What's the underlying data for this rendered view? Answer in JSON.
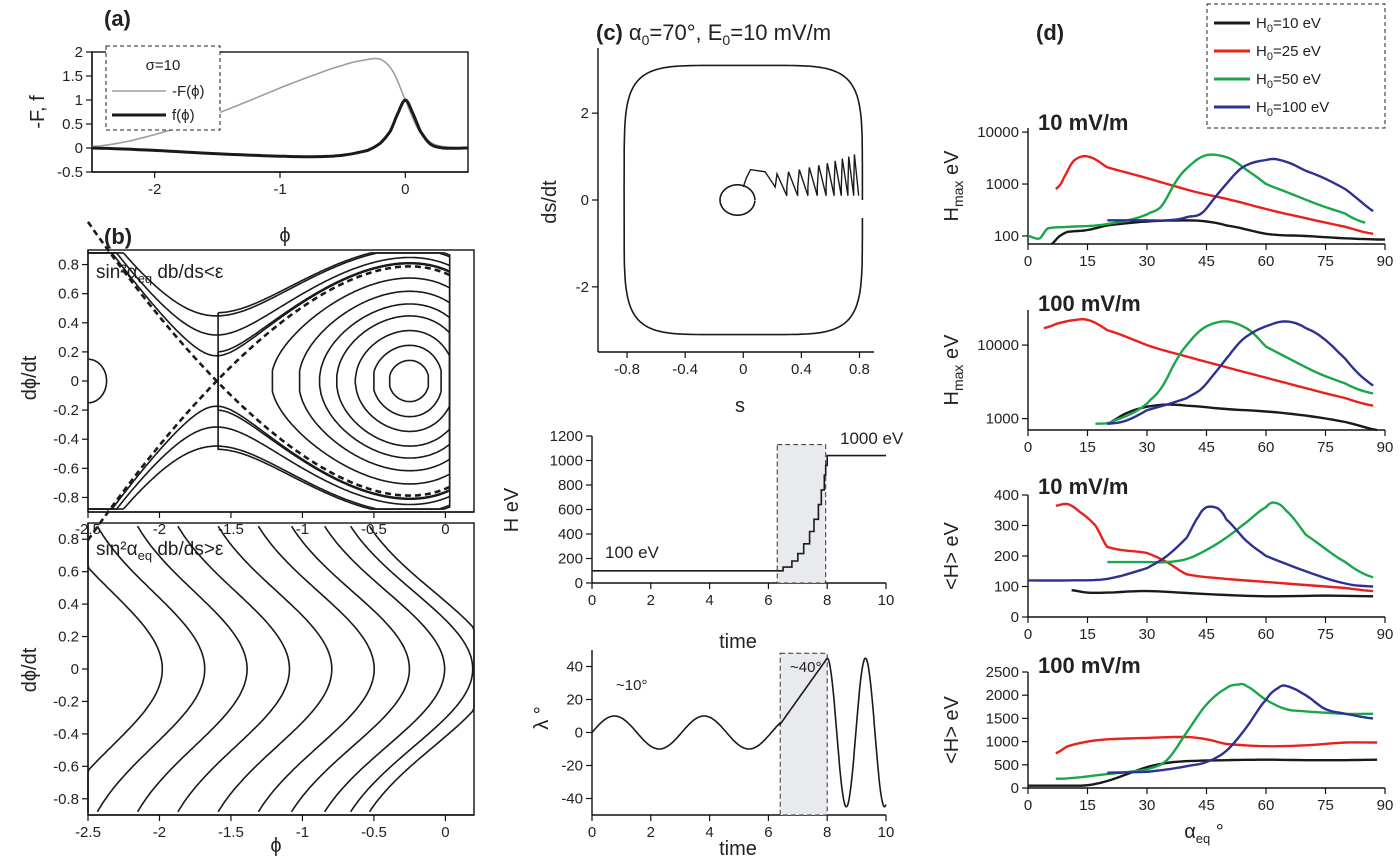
{
  "panels": {
    "a": {
      "label": "(a)",
      "ylabel": "-F, f",
      "xlabel": "ϕ",
      "legend_title": "σ=10",
      "legend": [
        "-F(ϕ)",
        "f(ϕ)"
      ]
    },
    "b": {
      "label": "(b)",
      "ylabel": "dϕ/dt",
      "xlabel": "ϕ",
      "top_text": "sin²α",
      "top_sub": "eq",
      "top_rest": " db/ds<ε",
      "bot_text": "sin²α",
      "bot_sub": "eq",
      "bot_rest": " db/ds>ε"
    },
    "c": {
      "label": "(c)",
      "title_a": "α",
      "title_sub0": "0",
      "title_mid": "=70°, E",
      "title_sub1": "0",
      "title_end": "=10 mV/m",
      "ylabel": "ds/dt",
      "xlabel": "s",
      "H_ylabel": "H eV",
      "H_xlabel": "time",
      "H_start": "100 eV",
      "H_end": "1000 eV",
      "L_ylabel": "λ °",
      "L_xlabel": "time",
      "L_ann1": "~10°",
      "L_ann2": "~40°"
    },
    "d": {
      "label": "(d)",
      "ylabel_hmax": "H",
      "ylabel_hmax_sub": "max",
      "ylabel_hmax_end": " eV",
      "ylabel_hmean": "<H> eV",
      "xlabel": "α",
      "xlabel_sub": "eq",
      "xlabel_end": " °",
      "sub1": "10 mV/m",
      "sub2": "100 mV/m",
      "sub3": "10 mV/m",
      "sub4": "100 mV/m",
      "legend": [
        {
          "pre": "H",
          "sub": "0",
          "post": "=10 eV"
        },
        {
          "pre": "H",
          "sub": "0",
          "post": "=25 eV"
        },
        {
          "pre": "H",
          "sub": "0",
          "post": "=50 eV"
        },
        {
          "pre": "H",
          "sub": "0",
          "post": "=100 eV"
        }
      ]
    }
  },
  "colors": {
    "black": "#1a1a1a",
    "red": "#e8211d",
    "green": "#1aa64a",
    "blue": "#2e3192",
    "gray": "#9e9e9e",
    "shade": "#e8eaee"
  },
  "chart_data": [
    {
      "type": "line",
      "panel": "a",
      "xlim": [
        -2.5,
        0.5
      ],
      "ylim": [
        -0.5,
        2
      ],
      "x_ticks": [
        "-2",
        "-1",
        "0"
      ],
      "y_ticks": [
        "-0.5",
        "0",
        "0.5",
        "1",
        "1.5",
        "2"
      ],
      "series": [
        {
          "name": "-F(ϕ)",
          "x": [
            -2.5,
            -2.25,
            -2,
            -1.75,
            -1.5,
            -1.25,
            -1,
            -0.75,
            -0.5,
            -0.35,
            -0.2,
            -0.1,
            0,
            0.1,
            0.2,
            0.3,
            0.5
          ],
          "y": [
            0.03,
            0.12,
            0.28,
            0.48,
            0.72,
            0.98,
            1.25,
            1.5,
            1.72,
            1.82,
            1.85,
            1.6,
            1.0,
            0.4,
            0.12,
            0.03,
            0.0
          ]
        },
        {
          "name": "f(ϕ)",
          "x": [
            -2.5,
            -2,
            -1.5,
            -1,
            -0.7,
            -0.5,
            -0.3,
            -0.2,
            -0.12,
            -0.06,
            0,
            0.06,
            0.12,
            0.2,
            0.3,
            0.5
          ],
          "y": [
            0,
            -0.05,
            -0.12,
            -0.17,
            -0.18,
            -0.15,
            -0.05,
            0.1,
            0.35,
            0.72,
            1.0,
            0.72,
            0.35,
            0.08,
            0.0,
            0.0
          ]
        }
      ]
    },
    {
      "type": "line",
      "panel": "b-top",
      "xlim": [
        -2.5,
        0.2
      ],
      "ylim": [
        -0.9,
        0.9
      ],
      "x_ticks": [
        "-2.5",
        "-2",
        "-1.5",
        "-1",
        "-0.5",
        "0"
      ],
      "y_ticks": [
        "-0.8",
        "-0.6",
        "-0.4",
        "-0.2",
        "0",
        "0.2",
        "0.4",
        "0.6",
        "0.8"
      ],
      "description": "closed orbits around (-0.25,0) and separatrix through X-point at -1.6"
    },
    {
      "type": "line",
      "panel": "b-bottom",
      "xlim": [
        -2.5,
        0.2
      ],
      "ylim": [
        -0.9,
        0.9
      ],
      "x_ticks": [
        "-2.5",
        "-2",
        "-1.5",
        "-1",
        "-0.5",
        "0"
      ],
      "y_ticks": [
        "-0.8",
        "-0.6",
        "-0.4",
        "-0.2",
        "0",
        "0.2",
        "0.4",
        "0.6",
        "0.8"
      ]
    },
    {
      "type": "line",
      "panel": "c-phase",
      "xlim": [
        -1,
        0.9
      ],
      "ylim": [
        -3.5,
        3.5
      ],
      "x_ticks": [
        "-0.8",
        "-0.4",
        "0",
        "0.4",
        "0.8"
      ],
      "y_ticks": [
        "-2",
        "0",
        "2"
      ]
    },
    {
      "type": "line",
      "panel": "c-H",
      "xlim": [
        0,
        10
      ],
      "ylim": [
        0,
        1200
      ],
      "x_ticks": [
        "0",
        "2",
        "4",
        "6",
        "8",
        "10"
      ],
      "y_ticks": [
        "0",
        "200",
        "400",
        "600",
        "800",
        "1000",
        "1200"
      ],
      "series": [
        {
          "x": [
            0,
            6.3,
            6.5,
            6.8,
            7.0,
            7.2,
            7.4,
            7.55,
            7.7,
            7.8,
            7.9,
            7.95,
            8.0,
            10
          ],
          "y": [
            100,
            100,
            130,
            180,
            240,
            320,
            420,
            520,
            640,
            760,
            880,
            960,
            1040,
            1040
          ]
        }
      ]
    },
    {
      "type": "line",
      "panel": "c-lambda",
      "xlim": [
        0,
        10
      ],
      "ylim": [
        -50,
        50
      ],
      "x_ticks": [
        "0",
        "2",
        "4",
        "6",
        "8",
        "10"
      ],
      "y_ticks": [
        "-40",
        "-20",
        "0",
        "20",
        "40"
      ]
    },
    {
      "type": "line",
      "panel": "d1",
      "title": "10 mV/m",
      "log": true,
      "xlim": [
        0,
        90
      ],
      "ylim": [
        70,
        12000
      ],
      "x_ticks": [
        "0",
        "15",
        "30",
        "45",
        "60",
        "75",
        "90"
      ],
      "y_ticks": [
        "100",
        "1000",
        "10000"
      ],
      "series": [
        {
          "name": "H0=10 eV",
          "x": [
            6,
            8,
            10,
            15,
            20,
            30,
            40,
            45,
            50,
            60,
            70,
            80,
            90
          ],
          "y": [
            70,
            100,
            120,
            130,
            160,
            190,
            200,
            190,
            160,
            110,
            100,
            90,
            85
          ]
        },
        {
          "name": "H0=25 eV",
          "x": [
            7,
            9,
            12,
            15,
            20,
            30,
            40,
            50,
            60,
            70,
            80,
            87
          ],
          "y": [
            800,
            1300,
            3000,
            3400,
            2100,
            1300,
            780,
            520,
            330,
            220,
            150,
            110
          ]
        },
        {
          "name": "H0=50 eV",
          "x": [
            0,
            3,
            5,
            10,
            20,
            30,
            35,
            40,
            45,
            50,
            55,
            60,
            70,
            80,
            85
          ],
          "y": [
            100,
            90,
            140,
            150,
            170,
            260,
            540,
            2000,
            3600,
            3300,
            1900,
            1000,
            500,
            270,
            180
          ]
        },
        {
          "name": "H0=100 eV",
          "x": [
            20,
            30,
            35,
            40,
            45,
            50,
            55,
            60,
            63,
            70,
            80,
            87
          ],
          "y": [
            200,
            200,
            200,
            230,
            340,
            1000,
            2300,
            2900,
            2950,
            1800,
            800,
            300
          ]
        }
      ]
    },
    {
      "type": "line",
      "panel": "d2",
      "title": "100 mV/m",
      "log": true,
      "xlim": [
        0,
        90
      ],
      "ylim": [
        700,
        30000
      ],
      "x_ticks": [
        "0",
        "15",
        "30",
        "45",
        "60",
        "75",
        "90"
      ],
      "y_ticks": [
        "1000",
        "10000"
      ],
      "series": [
        {
          "name": "H0=10 eV",
          "x": [
            20,
            25,
            30,
            35,
            40,
            50,
            60,
            70,
            80,
            88
          ],
          "y": [
            850,
            1200,
            1450,
            1550,
            1500,
            1350,
            1250,
            1100,
            900,
            700
          ]
        },
        {
          "name": "H0=25 eV",
          "x": [
            4,
            8,
            12,
            15,
            20,
            30,
            40,
            50,
            60,
            70,
            80,
            87
          ],
          "y": [
            17000,
            20000,
            22000,
            22000,
            16000,
            10000,
            7000,
            5000,
            3600,
            2600,
            1900,
            1500
          ]
        },
        {
          "name": "H0=50 eV",
          "x": [
            17,
            22,
            30,
            35,
            40,
            45,
            50,
            55,
            60,
            70,
            80,
            87
          ],
          "y": [
            850,
            950,
            1600,
            3500,
            10000,
            18000,
            21000,
            17000,
            9500,
            5000,
            3000,
            2200
          ]
        },
        {
          "name": "H0=100 eV",
          "x": [
            20,
            25,
            30,
            40,
            45,
            50,
            55,
            60,
            65,
            70,
            80,
            87
          ],
          "y": [
            850,
            950,
            1300,
            1900,
            3000,
            6500,
            13000,
            18000,
            21000,
            17000,
            6500,
            2800
          ]
        }
      ]
    },
    {
      "type": "line",
      "panel": "d3",
      "title": "10 mV/m",
      "xlim": [
        0,
        90
      ],
      "ylim": [
        0,
        400
      ],
      "x_ticks": [
        "0",
        "15",
        "30",
        "45",
        "60",
        "75",
        "90"
      ],
      "y_ticks": [
        "0",
        "100",
        "200",
        "300",
        "400"
      ],
      "series": [
        {
          "name": "H0=10 eV",
          "x": [
            11,
            15,
            20,
            30,
            45,
            60,
            75,
            87
          ],
          "y": [
            88,
            80,
            80,
            85,
            75,
            68,
            70,
            68
          ]
        },
        {
          "name": "H0=25 eV",
          "x": [
            7,
            10,
            13,
            17,
            20,
            30,
            35,
            40,
            50,
            60,
            70,
            80,
            87
          ],
          "y": [
            365,
            370,
            345,
            300,
            230,
            210,
            180,
            140,
            125,
            115,
            105,
            95,
            85
          ]
        },
        {
          "name": "H0=50 eV",
          "x": [
            20,
            30,
            35,
            40,
            45,
            50,
            55,
            60,
            62,
            65,
            70,
            80,
            87
          ],
          "y": [
            180,
            180,
            180,
            190,
            220,
            260,
            310,
            360,
            375,
            350,
            270,
            180,
            130
          ]
        },
        {
          "name": "H0=100 eV",
          "x": [
            0,
            10,
            20,
            30,
            35,
            40,
            43,
            45,
            48,
            50,
            55,
            60,
            70,
            80,
            87
          ],
          "y": [
            120,
            120,
            125,
            160,
            200,
            260,
            330,
            360,
            355,
            320,
            250,
            200,
            150,
            110,
            100
          ]
        }
      ]
    },
    {
      "type": "line",
      "panel": "d4",
      "title": "100 mV/m",
      "xlim": [
        0,
        90
      ],
      "ylim": [
        0,
        2500
      ],
      "x_ticks": [
        "0",
        "15",
        "30",
        "45",
        "60",
        "75",
        "90"
      ],
      "y_ticks": [
        "0",
        "500",
        "1000",
        "1500",
        "2000",
        "2500"
      ],
      "series": [
        {
          "name": "H0=10 eV",
          "x": [
            0,
            10,
            15,
            20,
            25,
            30,
            35,
            40,
            50,
            60,
            70,
            80,
            88
          ],
          "y": [
            50,
            50,
            60,
            150,
            300,
            450,
            540,
            580,
            600,
            610,
            600,
            600,
            610
          ]
        },
        {
          "name": "H0=25 eV",
          "x": [
            7,
            10,
            15,
            20,
            30,
            40,
            45,
            50,
            60,
            70,
            80,
            88
          ],
          "y": [
            750,
            900,
            1000,
            1050,
            1080,
            1100,
            1050,
            950,
            900,
            920,
            980,
            980
          ]
        },
        {
          "name": "H0=50 eV",
          "x": [
            7,
            10,
            20,
            30,
            35,
            40,
            45,
            50,
            53,
            55,
            60,
            65,
            70,
            80,
            87
          ],
          "y": [
            200,
            210,
            300,
            400,
            600,
            1200,
            1800,
            2150,
            2230,
            2200,
            1900,
            1700,
            1650,
            1600,
            1600
          ]
        },
        {
          "name": "H0=100 eV",
          "x": [
            20,
            30,
            35,
            40,
            45,
            50,
            55,
            60,
            63,
            65,
            70,
            75,
            80,
            87
          ],
          "y": [
            330,
            350,
            400,
            470,
            560,
            800,
            1300,
            1900,
            2150,
            2200,
            2000,
            1700,
            1600,
            1500
          ]
        }
      ]
    }
  ]
}
